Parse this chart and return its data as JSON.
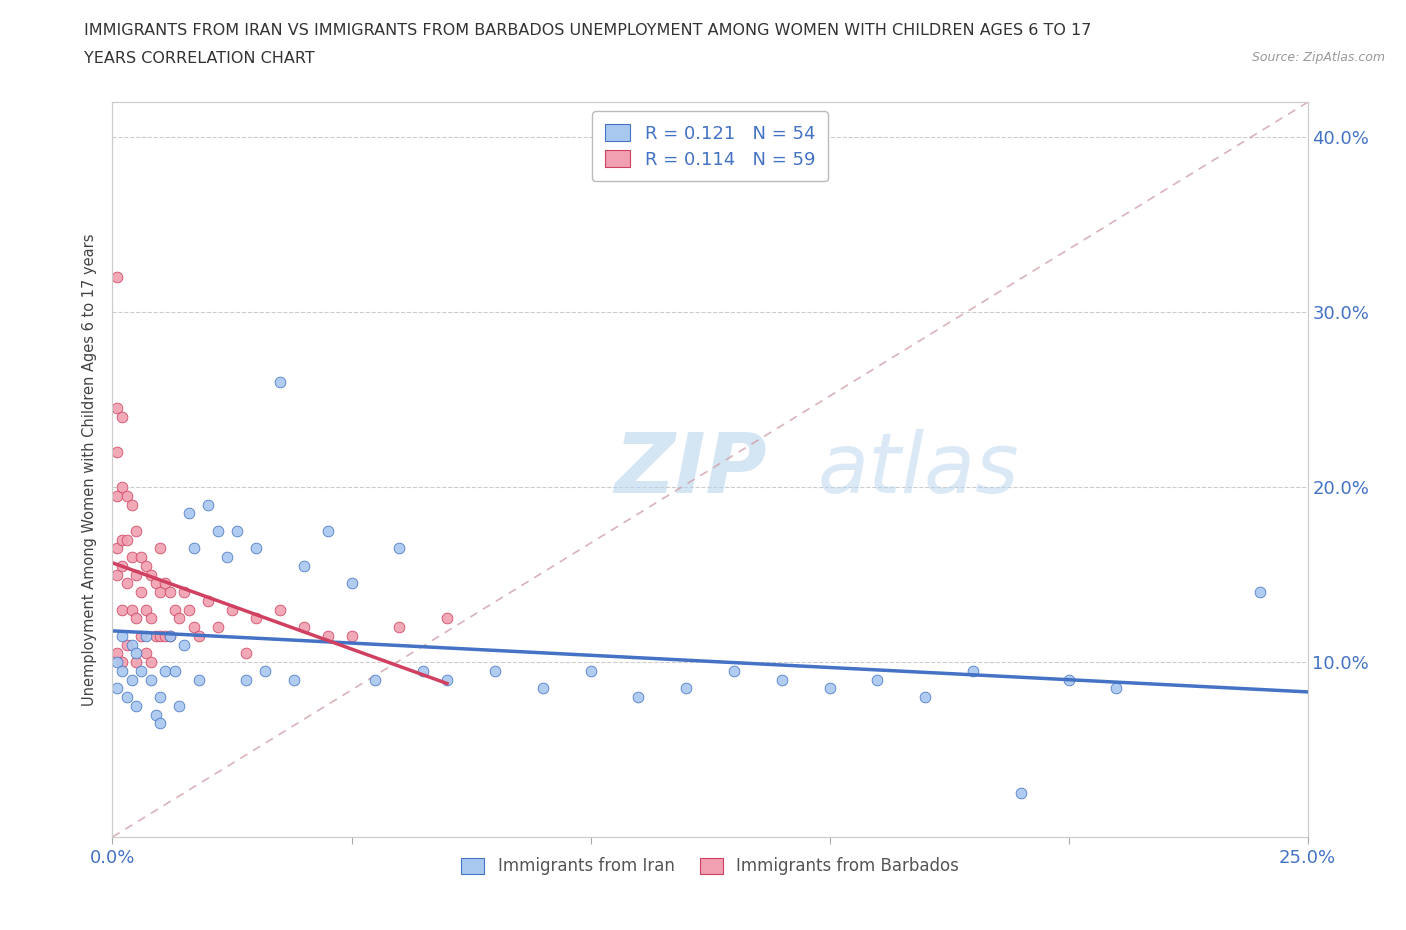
{
  "title_line1": "IMMIGRANTS FROM IRAN VS IMMIGRANTS FROM BARBADOS UNEMPLOYMENT AMONG WOMEN WITH CHILDREN AGES 6 TO 17",
  "title_line2": "YEARS CORRELATION CHART",
  "source": "Source: ZipAtlas.com",
  "ylabel": "Unemployment Among Women with Children Ages 6 to 17 years",
  "xlim": [
    0.0,
    0.25
  ],
  "ylim": [
    0.0,
    0.42
  ],
  "legend_iran_R": "0.121",
  "legend_iran_N": "54",
  "legend_barbados_R": "0.114",
  "legend_barbados_N": "59",
  "color_iran": "#a8c8f0",
  "color_barbados": "#f0a0b0",
  "color_iran_line": "#4472c4",
  "color_barbados_line": "#d04060",
  "color_ref_line": "#d0a0a8",
  "color_text_blue": "#4472c4",
  "iran_x": [
    0.001,
    0.001,
    0.002,
    0.002,
    0.003,
    0.004,
    0.004,
    0.005,
    0.005,
    0.006,
    0.007,
    0.008,
    0.009,
    0.01,
    0.01,
    0.011,
    0.012,
    0.013,
    0.014,
    0.015,
    0.016,
    0.017,
    0.018,
    0.02,
    0.022,
    0.024,
    0.026,
    0.028,
    0.03,
    0.032,
    0.035,
    0.038,
    0.04,
    0.045,
    0.05,
    0.055,
    0.06,
    0.065,
    0.07,
    0.08,
    0.09,
    0.1,
    0.11,
    0.12,
    0.13,
    0.14,
    0.15,
    0.16,
    0.17,
    0.18,
    0.19,
    0.2,
    0.21,
    0.24
  ],
  "iran_y": [
    0.1,
    0.085,
    0.115,
    0.095,
    0.08,
    0.11,
    0.09,
    0.105,
    0.075,
    0.095,
    0.115,
    0.09,
    0.07,
    0.08,
    0.065,
    0.095,
    0.115,
    0.095,
    0.075,
    0.11,
    0.185,
    0.165,
    0.09,
    0.19,
    0.175,
    0.16,
    0.175,
    0.09,
    0.165,
    0.095,
    0.26,
    0.09,
    0.155,
    0.175,
    0.145,
    0.09,
    0.165,
    0.095,
    0.09,
    0.095,
    0.085,
    0.095,
    0.08,
    0.085,
    0.095,
    0.09,
    0.085,
    0.09,
    0.08,
    0.095,
    0.025,
    0.09,
    0.085,
    0.14
  ],
  "barbados_x": [
    0.001,
    0.001,
    0.001,
    0.001,
    0.001,
    0.001,
    0.001,
    0.002,
    0.002,
    0.002,
    0.002,
    0.002,
    0.002,
    0.003,
    0.003,
    0.003,
    0.003,
    0.004,
    0.004,
    0.004,
    0.005,
    0.005,
    0.005,
    0.005,
    0.006,
    0.006,
    0.006,
    0.007,
    0.007,
    0.007,
    0.008,
    0.008,
    0.008,
    0.009,
    0.009,
    0.01,
    0.01,
    0.01,
    0.011,
    0.011,
    0.012,
    0.012,
    0.013,
    0.014,
    0.015,
    0.016,
    0.017,
    0.018,
    0.02,
    0.022,
    0.025,
    0.028,
    0.03,
    0.035,
    0.04,
    0.045,
    0.05,
    0.06,
    0.07
  ],
  "barbados_y": [
    0.32,
    0.245,
    0.22,
    0.195,
    0.165,
    0.15,
    0.105,
    0.24,
    0.2,
    0.17,
    0.155,
    0.13,
    0.1,
    0.195,
    0.17,
    0.145,
    0.11,
    0.19,
    0.16,
    0.13,
    0.175,
    0.15,
    0.125,
    0.1,
    0.16,
    0.14,
    0.115,
    0.155,
    0.13,
    0.105,
    0.15,
    0.125,
    0.1,
    0.145,
    0.115,
    0.165,
    0.14,
    0.115,
    0.145,
    0.115,
    0.14,
    0.115,
    0.13,
    0.125,
    0.14,
    0.13,
    0.12,
    0.115,
    0.135,
    0.12,
    0.13,
    0.105,
    0.125,
    0.13,
    0.12,
    0.115,
    0.115,
    0.12,
    0.125
  ]
}
